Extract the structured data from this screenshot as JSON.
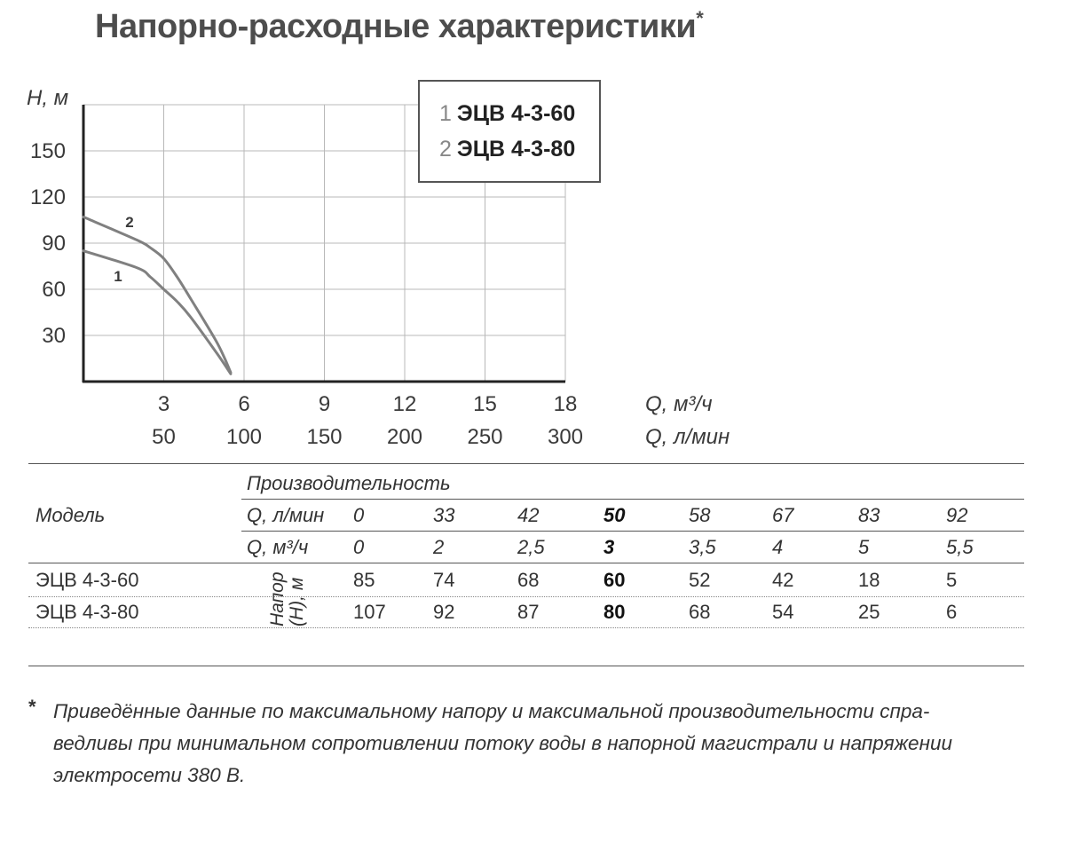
{
  "title": "Напорно-расходные характеристики",
  "title_mark": "*",
  "chart_data": {
    "type": "line",
    "ylabel": "H, м",
    "yticks": [
      "150",
      "120",
      "90",
      "60",
      "30"
    ],
    "ylim": [
      0,
      180
    ],
    "xlim": [
      0,
      18
    ],
    "xlabel_m3h": "Q, м³/ч",
    "xlabel_lmin": "Q, л/мин",
    "xticks_m3h": [
      "3",
      "6",
      "9",
      "12",
      "15",
      "18"
    ],
    "xticks_lmin": [
      "50",
      "100",
      "150",
      "200",
      "250",
      "300"
    ],
    "grid": true,
    "series": [
      {
        "name": "ЭЦВ 4-3-60",
        "label": "1",
        "x": [
          0,
          2,
          2.5,
          3,
          3.5,
          4,
          5,
          5.5
        ],
        "y": [
          85,
          74,
          68,
          60,
          52,
          42,
          18,
          5
        ]
      },
      {
        "name": "ЭЦВ 4-3-80",
        "label": "2",
        "x": [
          0,
          2,
          2.5,
          3,
          3.5,
          4,
          5,
          5.5
        ],
        "y": [
          107,
          92,
          87,
          80,
          68,
          54,
          25,
          6
        ]
      }
    ]
  },
  "legend": {
    "items": [
      {
        "num": "1",
        "label": "ЭЦВ 4-3-60"
      },
      {
        "num": "2",
        "label": "ЭЦВ 4-3-80"
      }
    ]
  },
  "table": {
    "model_header": "Модель",
    "perf_header": "Производительность",
    "q_lmin_label": "Q, л/мин",
    "q_m3h_label": "Q, м³/ч",
    "q_lmin": [
      "0",
      "33",
      "42",
      "50",
      "58",
      "67",
      "83",
      "92"
    ],
    "q_m3h": [
      "0",
      "2",
      "2,5",
      "3",
      "3,5",
      "4",
      "5",
      "5,5"
    ],
    "head_label_1": "Напор",
    "head_label_2": "(H), м",
    "rows": [
      {
        "model": "ЭЦВ 4-3-60",
        "values": [
          "85",
          "74",
          "68",
          "60",
          "52",
          "42",
          "18",
          "5"
        ]
      },
      {
        "model": "ЭЦВ 4-3-80",
        "values": [
          "107",
          "92",
          "87",
          "80",
          "68",
          "54",
          "25",
          "6"
        ]
      }
    ]
  },
  "footnote": {
    "mark": "*",
    "line1": "Приведённые данные по максимальному напору и максимальной производительности спра-",
    "line2": "ведливы при минимальном сопротивлении потоку воды в напорной магистрали и напряжении",
    "line3": "электросети 380 В."
  }
}
